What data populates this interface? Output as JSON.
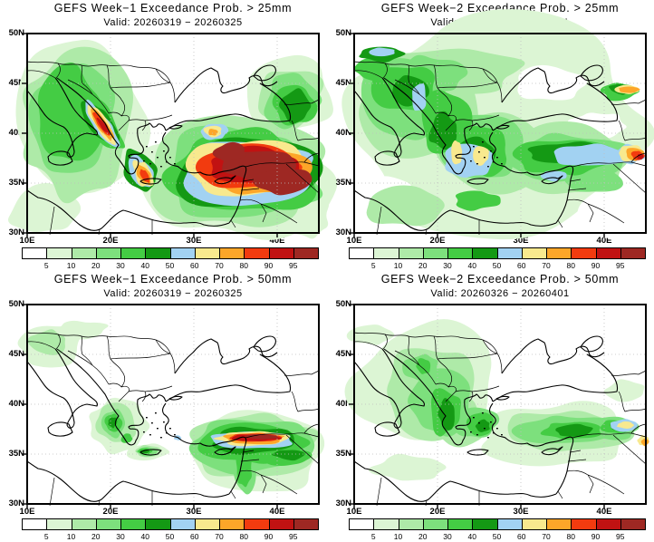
{
  "figure": {
    "kind": "GEFS exceedance probability map grid",
    "rows": 2,
    "cols": 2
  },
  "panels": [
    {
      "id": "week1-25mm",
      "title": "GEFS Week−1 Exceedance Prob. > 25mm",
      "valid": "Valid: 20260319 − 20260325"
    },
    {
      "id": "week2-25mm",
      "title": "GEFS Week−2 Exceedance Prob. > 25mm",
      "valid": "Valid: 20260326 − 20260401"
    },
    {
      "id": "week1-50mm",
      "title": "GEFS Week−1 Exceedance Prob. > 50mm",
      "valid": "Valid: 20260319 − 20260325"
    },
    {
      "id": "week2-50mm",
      "title": "GEFS Week−2 Exceedance Prob. > 50mm",
      "valid": "Valid: 20260326 − 20260401"
    }
  ],
  "axes": {
    "lat_ticks": [
      "50N",
      "45N",
      "40N",
      "35N",
      "30N"
    ],
    "lon_ticks": [
      "10E",
      "20E",
      "30E",
      "40E"
    ]
  },
  "colorbar": {
    "tick_labels": [
      "5",
      "10",
      "20",
      "30",
      "40",
      "50",
      "60",
      "70",
      "80",
      "90",
      "95"
    ],
    "colors": [
      "#ffffff",
      "#dcf5d4",
      "#aeeaa8",
      "#7de07d",
      "#44cc44",
      "#149914",
      "#a2d2f2",
      "#f8e98e",
      "#fda629",
      "#f23b0f",
      "#c11212",
      "#9e2823"
    ]
  }
}
